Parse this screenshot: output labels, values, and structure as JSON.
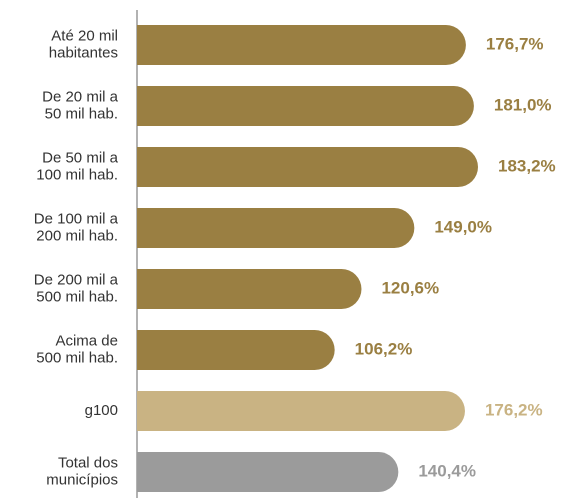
{
  "chart_data": {
    "type": "bar",
    "orientation": "horizontal",
    "categories": [
      [
        "Até 20 mil",
        "habitantes"
      ],
      [
        "De 20 mil a",
        "50 mil hab."
      ],
      [
        "De 50 mil a",
        "100 mil hab."
      ],
      [
        "De 100 mil a",
        "200 mil hab."
      ],
      [
        "De 200 mil a",
        "500 mil hab."
      ],
      [
        "Acima de",
        "500 mil hab."
      ],
      [
        "g100"
      ],
      [
        "Total dos",
        "municípios"
      ]
    ],
    "values": [
      176.7,
      181.0,
      183.2,
      149.0,
      120.6,
      106.2,
      176.2,
      140.4
    ],
    "value_labels": [
      "176,7%",
      "181,0%",
      "183,2%",
      "149,0%",
      "120,6%",
      "106,2%",
      "176,2%",
      "140,4%"
    ],
    "colors": [
      "#9a7f42",
      "#9a7f42",
      "#9a7f42",
      "#9a7f42",
      "#9a7f42",
      "#9a7f42",
      "#c9b383",
      "#9b9b9b"
    ]
  }
}
